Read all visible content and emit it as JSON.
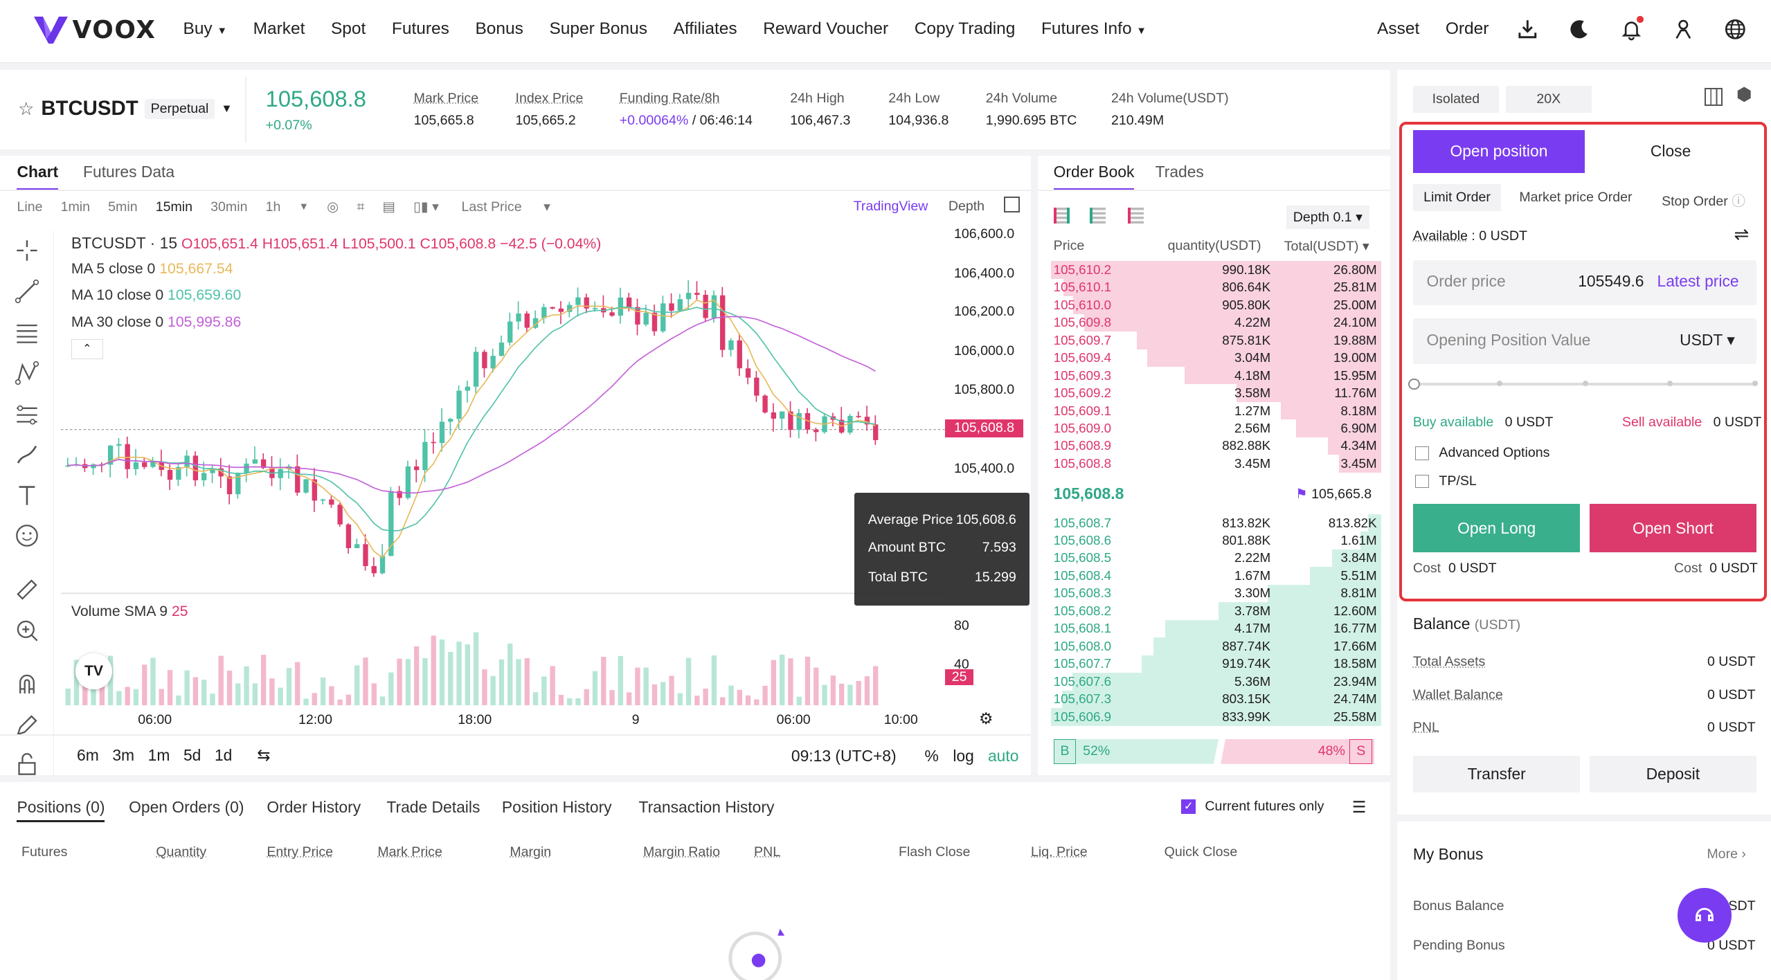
{
  "brand": {
    "name": "VOOX"
  },
  "nav": {
    "items": [
      "Buy",
      "Market",
      "Spot",
      "Futures",
      "Bonus",
      "Super Bonus",
      "Affiliates",
      "Reward Voucher",
      "Copy Trading",
      "Futures Info"
    ],
    "right": {
      "asset": "Asset",
      "order": "Order"
    }
  },
  "ticker": {
    "symbol": "BTCUSDT",
    "type": "Perpetual",
    "last_price": "105,608.8",
    "change": "+0.07%",
    "stats": [
      {
        "label": "Mark Price",
        "value": "105,665.8"
      },
      {
        "label": "Index Price",
        "value": "105,665.2"
      },
      {
        "label": "Funding Rate/8h",
        "value_a": "+0.00064%",
        "value_b": " / 06:46:14"
      },
      {
        "label": "24h High",
        "value": "106,467.3"
      },
      {
        "label": "24h Low",
        "value": "104,936.8"
      },
      {
        "label": "24h Volume",
        "value": "1,990.695 BTC"
      },
      {
        "label": "24h Volume(USDT)",
        "value": "210.49M"
      }
    ]
  },
  "chart_tabs": [
    "Chart",
    "Futures Data"
  ],
  "chart_toolbar": {
    "intervals": [
      "Line",
      "1min",
      "5min",
      "15min",
      "30min",
      "1h"
    ],
    "price_type": "Last Price",
    "tradingview": "TradingView",
    "depth": "Depth"
  },
  "chart_legend": {
    "title": "BTCUSDT · 15",
    "ohlc": "O105,651.4 H105,651.4 L105,500.1 C105,608.8 −42.5 (−0.04%)",
    "ma5_label": "MA 5 close 0",
    "ma5_value": "105,667.54",
    "ma10_label": "MA 10 close 0",
    "ma10_value": "105,659.60",
    "ma30_label": "MA 30 close 0",
    "ma30_value": "105,995.86",
    "volume_label": "Volume SMA 9",
    "volume_value": "25"
  },
  "chart_price_axis": [
    "106,600.0",
    "106,400.0",
    "106,200.0",
    "106,000.0",
    "105,800.0",
    "105,400.0"
  ],
  "chart_price_tag": "105,608.8",
  "volume_axis": [
    "80",
    "40"
  ],
  "volume_tag": "25",
  "chart_time_axis": [
    "06:00",
    "12:00",
    "18:00",
    "9",
    "06:00",
    "10:00"
  ],
  "chart_bottom": {
    "ranges": [
      "6m",
      "3m",
      "1m",
      "5d",
      "1d"
    ],
    "time": "09:13 (UTC+8)",
    "pct": "%",
    "log": "log",
    "auto": "auto"
  },
  "tooltip": {
    "rows": [
      {
        "k": "Average Price",
        "v": "105,608.6"
      },
      {
        "k": "Amount BTC",
        "v": "7.593"
      },
      {
        "k": "Total BTC",
        "v": "15.299"
      }
    ]
  },
  "orderbook": {
    "tabs": [
      "Order Book",
      "Trades"
    ],
    "depth": "Depth 0.1",
    "headers": [
      "Price",
      "quantity(USDT)",
      "Total(USDT)"
    ],
    "asks": [
      [
        "105,610.2",
        "990.18K",
        "26.80M"
      ],
      [
        "105,610.1",
        "806.64K",
        "25.81M"
      ],
      [
        "105,610.0",
        "905.80K",
        "25.00M"
      ],
      [
        "105,609.8",
        "4.22M",
        "24.10M"
      ],
      [
        "105,609.7",
        "875.81K",
        "19.88M"
      ],
      [
        "105,609.4",
        "3.04M",
        "19.00M"
      ],
      [
        "105,609.3",
        "4.18M",
        "15.95M"
      ],
      [
        "105,609.2",
        "3.58M",
        "11.76M"
      ],
      [
        "105,609.1",
        "1.27M",
        "8.18M"
      ],
      [
        "105,609.0",
        "2.56M",
        "6.90M"
      ],
      [
        "105,608.9",
        "882.88K",
        "4.34M"
      ],
      [
        "105,608.8",
        "3.45M",
        "3.45M"
      ]
    ],
    "mid_price": "105,608.8",
    "mark": "105,665.8",
    "bids": [
      [
        "105,608.7",
        "813.82K",
        "813.82K"
      ],
      [
        "105,608.6",
        "801.88K",
        "1.61M"
      ],
      [
        "105,608.5",
        "2.22M",
        "3.84M"
      ],
      [
        "105,608.4",
        "1.67M",
        "5.51M"
      ],
      [
        "105,608.3",
        "3.30M",
        "8.81M"
      ],
      [
        "105,608.2",
        "3.78M",
        "12.60M"
      ],
      [
        "105,608.1",
        "4.17M",
        "16.77M"
      ],
      [
        "105,608.0",
        "887.74K",
        "17.66M"
      ],
      [
        "105,607.7",
        "919.74K",
        "18.58M"
      ],
      [
        "105,607.6",
        "5.36M",
        "23.94M"
      ],
      [
        "105,607.3",
        "803.15K",
        "24.74M"
      ],
      [
        "105,606.9",
        "833.99K",
        "25.58M"
      ]
    ],
    "buy_pct": "52%",
    "sell_pct": "48%",
    "buy_letter": "B",
    "sell_letter": "S"
  },
  "order_form": {
    "margin_mode": "Isolated",
    "leverage": "20X",
    "tab_open": "Open position",
    "tab_close": "Close",
    "order_types": [
      "Limit Order",
      "Market price Order",
      "Stop Order"
    ],
    "available_label": "Available",
    "available_value": ": 0 USDT",
    "price_placeholder": "Order price",
    "price_value": "105549.6",
    "latest": "Latest price",
    "value_placeholder": "Opening Position Value",
    "unit": "USDT",
    "buy_available_label": "Buy available",
    "buy_available_value": "0 USDT",
    "sell_available_label": "Sell available",
    "sell_available_value": "0 USDT",
    "advanced": "Advanced Options",
    "tpsl": "TP/SL",
    "open_long": "Open Long",
    "open_short": "Open Short",
    "cost_label": "Cost",
    "cost_value": "0 USDT",
    "highlight_color": "#e5343a"
  },
  "balance": {
    "title": "Balance",
    "unit": "(USDT)",
    "rows": [
      {
        "k": "Total Assets",
        "v": "0 USDT"
      },
      {
        "k": "Wallet Balance",
        "v": "0 USDT"
      },
      {
        "k": "PNL",
        "v": "0 USDT"
      }
    ],
    "transfer": "Transfer",
    "deposit": "Deposit"
  },
  "bonus": {
    "title": "My Bonus",
    "more": "More",
    "rows": [
      {
        "k": "Bonus Balance",
        "v": "0 USDT"
      },
      {
        "k": "Pending Bonus",
        "v": "0 USDT"
      }
    ]
  },
  "positions": {
    "tabs": [
      "Positions (0)",
      "Open Orders (0)",
      "Order History",
      "Trade Details",
      "Position History",
      "Transaction History"
    ],
    "current_only": "Current futures only",
    "headers": [
      "Futures",
      "Quantity",
      "Entry Price",
      "Mark Price",
      "Margin",
      "Margin Ratio",
      "PNL",
      "Flash Close",
      "Liq. Price",
      "Quick Close"
    ]
  },
  "colors": {
    "accent": "#7a3cf0",
    "green": "#2ea886",
    "red": "#e0356b",
    "ask_bg": "#f9d1df",
    "bid_bg": "#d2f1e6"
  }
}
